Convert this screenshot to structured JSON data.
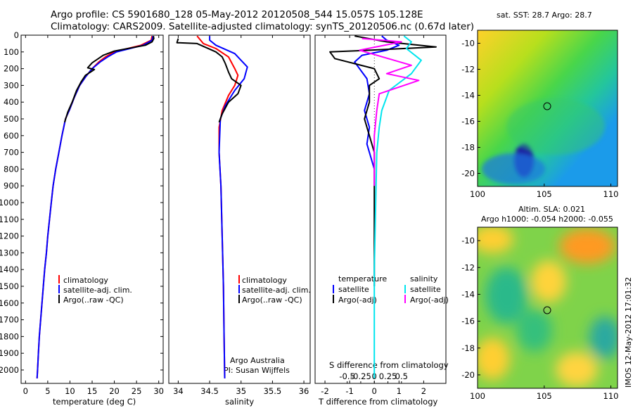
{
  "header": {
    "line1": "Argo profile: CS 5901680_128 05-May-2012 20120508_544 15.057S 105.128E",
    "line2": "Climatology: CARS2009. Satellite-adjusted climatology: synTS_20120506.nc (0.67d later)"
  },
  "colors": {
    "climatology": "#ff0000",
    "satellite": "#0000ff",
    "argo": "#000000",
    "salinity_satellite": "#00e5ee",
    "salinity_argo": "#ff00ff"
  },
  "chart_data": [
    {
      "id": "temperature",
      "type": "line",
      "xlabel": "temperature (deg C)",
      "ylabel": "",
      "xlim": [
        -1,
        31
      ],
      "ylim": [
        2080,
        0
      ],
      "xticks": [
        0,
        5,
        10,
        15,
        20,
        25,
        30
      ],
      "yticks": [
        0,
        100,
        200,
        300,
        400,
        500,
        600,
        700,
        800,
        900,
        1000,
        1100,
        1200,
        1300,
        1400,
        1500,
        1600,
        1700,
        1800,
        1900,
        2000
      ],
      "legend": [
        "climatology",
        "satellite-adj. clim.",
        "Argo(..raw -QC)"
      ],
      "series": [
        {
          "name": "climatology",
          "color": "#ff0000",
          "points": [
            [
              28.5,
              5
            ],
            [
              28.3,
              30
            ],
            [
              26,
              60
            ],
            [
              23,
              80
            ],
            [
              20,
              100
            ],
            [
              18,
              130
            ],
            [
              16.5,
              160
            ],
            [
              15,
              200
            ],
            [
              13.5,
              250
            ],
            [
              12.2,
              300
            ],
            [
              11,
              370
            ],
            [
              10,
              440
            ],
            [
              9,
              500
            ],
            [
              8.2,
              600
            ],
            [
              7.5,
              700
            ],
            [
              6.8,
              800
            ],
            [
              6.2,
              900
            ],
            [
              5.8,
              1000
            ],
            [
              5.4,
              1100
            ],
            [
              5,
              1200
            ],
            [
              4.7,
              1300
            ],
            [
              4.3,
              1400
            ],
            [
              4,
              1500
            ],
            [
              3.7,
              1600
            ],
            [
              3.4,
              1700
            ],
            [
              3.1,
              1800
            ],
            [
              2.9,
              1900
            ],
            [
              2.7,
              2000
            ],
            [
              2.6,
              2050
            ]
          ]
        },
        {
          "name": "satellite-adj. clim.",
          "color": "#0000ff",
          "points": [
            [
              28.7,
              5
            ],
            [
              28.5,
              30
            ],
            [
              26.5,
              60
            ],
            [
              23.5,
              80
            ],
            [
              20.5,
              100
            ],
            [
              18.5,
              130
            ],
            [
              16.8,
              160
            ],
            [
              15,
              200
            ],
            [
              13.5,
              250
            ],
            [
              12.2,
              300
            ],
            [
              11,
              370
            ],
            [
              10,
              440
            ],
            [
              9,
              500
            ],
            [
              8.2,
              600
            ],
            [
              7.5,
              700
            ],
            [
              6.8,
              800
            ],
            [
              6.2,
              900
            ],
            [
              5.8,
              1000
            ],
            [
              5.4,
              1100
            ],
            [
              5,
              1200
            ],
            [
              4.7,
              1300
            ],
            [
              4.3,
              1400
            ],
            [
              4,
              1500
            ],
            [
              3.7,
              1600
            ],
            [
              3.4,
              1700
            ],
            [
              3.1,
              1800
            ],
            [
              2.9,
              1900
            ],
            [
              2.7,
              2000
            ],
            [
              2.6,
              2050
            ]
          ]
        },
        {
          "name": "Argo(..raw -QC)",
          "color": "#000000",
          "points": [
            [
              28.8,
              5
            ],
            [
              28.9,
              20
            ],
            [
              28.5,
              40
            ],
            [
              27,
              60
            ],
            [
              24,
              75
            ],
            [
              20,
              95
            ],
            [
              17.5,
              120
            ],
            [
              15,
              165
            ],
            [
              14.5,
              180
            ],
            [
              14,
              195
            ],
            [
              15.5,
              205
            ],
            [
              13.5,
              240
            ],
            [
              12.5,
              280
            ],
            [
              11.5,
              330
            ],
            [
              10.5,
              400
            ],
            [
              9.5,
              460
            ],
            [
              8.8,
              520
            ]
          ]
        }
      ]
    },
    {
      "id": "salinity",
      "type": "line",
      "xlabel": "salinity",
      "ylabel": "",
      "xlim": [
        33.85,
        36.1
      ],
      "ylim": [
        2080,
        0
      ],
      "xticks": [
        34,
        34.5,
        35,
        35.5,
        36
      ],
      "xticklabels": [
        "34",
        "34.5",
        "35",
        "35.5",
        "36"
      ],
      "legend": [
        "climatology",
        "satellite-adj. clim.",
        "Argo(..raw -QC)"
      ],
      "series": [
        {
          "name": "climatology",
          "color": "#ff0000",
          "points": [
            [
              34.3,
              5
            ],
            [
              34.4,
              50
            ],
            [
              34.6,
              80
            ],
            [
              34.8,
              130
            ],
            [
              34.9,
              200
            ],
            [
              34.95,
              240
            ],
            [
              34.9,
              300
            ],
            [
              34.8,
              360
            ],
            [
              34.7,
              450
            ],
            [
              34.65,
              550
            ],
            [
              34.65,
              700
            ],
            [
              34.68,
              900
            ],
            [
              34.7,
              1200
            ],
            [
              34.72,
              1500
            ],
            [
              34.73,
              1800
            ],
            [
              34.74,
              2050
            ]
          ]
        },
        {
          "name": "satellite-adj. clim.",
          "color": "#0000ff",
          "points": [
            [
              34.5,
              5
            ],
            [
              34.5,
              30
            ],
            [
              34.6,
              60
            ],
            [
              34.9,
              110
            ],
            [
              35.0,
              150
            ],
            [
              35.1,
              190
            ],
            [
              35.05,
              260
            ],
            [
              34.9,
              330
            ],
            [
              34.75,
              420
            ],
            [
              34.67,
              500
            ],
            [
              34.65,
              700
            ],
            [
              34.68,
              900
            ],
            [
              34.7,
              1200
            ],
            [
              34.72,
              1500
            ],
            [
              34.73,
              1800
            ],
            [
              34.74,
              2050
            ]
          ]
        },
        {
          "name": "Argo(..raw -QC)",
          "color": "#000000",
          "points": [
            [
              34.0,
              20
            ],
            [
              33.98,
              45
            ],
            [
              34.3,
              50
            ],
            [
              34.6,
              100
            ],
            [
              34.7,
              130
            ],
            [
              34.75,
              170
            ],
            [
              34.8,
              220
            ],
            [
              34.85,
              260
            ],
            [
              35.0,
              300
            ],
            [
              34.95,
              350
            ],
            [
              34.8,
              400
            ],
            [
              34.7,
              470
            ],
            [
              34.65,
              520
            ]
          ]
        }
      ],
      "annotation": [
        "Argo Australia",
        "PI: Susan Wijffels"
      ]
    },
    {
      "id": "difference",
      "type": "line",
      "xlabel": "T difference from climatology",
      "top_xlabel": "S difference from climatology",
      "xlim": [
        -2.4,
        2.9
      ],
      "ylim": [
        2080,
        0
      ],
      "xticks": [
        -2,
        -1,
        0,
        1,
        2
      ],
      "top_xticks": [
        -0.5,
        -0.25,
        0,
        0.25,
        0.5
      ],
      "legend_titles": [
        "temperature",
        "salinity"
      ],
      "legend": [
        "satellite",
        "Argo(-adj)",
        "satellite",
        "Argo(-adj)"
      ],
      "series": [
        {
          "name": "temperature satellite",
          "color": "#0000ff",
          "points": [
            [
              0.3,
              5
            ],
            [
              0.5,
              30
            ],
            [
              1.0,
              60
            ],
            [
              0.5,
              90
            ],
            [
              -0.5,
              120
            ],
            [
              -0.8,
              160
            ],
            [
              -0.6,
              200
            ],
            [
              -0.3,
              260
            ],
            [
              -0.2,
              350
            ],
            [
              -0.4,
              450
            ],
            [
              -0.2,
              550
            ],
            [
              -0.3,
              650
            ],
            [
              0,
              800
            ]
          ]
        },
        {
          "name": "temperature Argo(-adj)",
          "color": "#000000",
          "points": [
            [
              -0.8,
              5
            ],
            [
              0.5,
              40
            ],
            [
              2.5,
              70
            ],
            [
              -0.2,
              90
            ],
            [
              -1.8,
              100
            ],
            [
              -1.6,
              140
            ],
            [
              0,
              200
            ],
            [
              0.2,
              260
            ],
            [
              -0.2,
              300
            ],
            [
              -0.2,
              400
            ],
            [
              -0.4,
              500
            ],
            [
              -0.2,
              600
            ],
            [
              0,
              700
            ],
            [
              0,
              1300
            ],
            [
              0,
              1500
            ]
          ]
        },
        {
          "name": "salinity satellite",
          "color": "#00e5ee",
          "points": [
            [
              1.2,
              5
            ],
            [
              1.5,
              40
            ],
            [
              1.3,
              80
            ],
            [
              1.9,
              150
            ],
            [
              1.5,
              230
            ],
            [
              0.6,
              330
            ],
            [
              0.3,
              450
            ],
            [
              0.2,
              550
            ],
            [
              0.1,
              700
            ],
            [
              0,
              1400
            ],
            [
              0,
              2050
            ]
          ]
        },
        {
          "name": "salinity Argo(-adj)",
          "color": "#ff00ff",
          "points": [
            [
              -0.5,
              20
            ],
            [
              1.1,
              40
            ],
            [
              -0.6,
              90
            ],
            [
              1.5,
              180
            ],
            [
              0.5,
              230
            ],
            [
              1.8,
              270
            ],
            [
              0.2,
              350
            ],
            [
              0.1,
              450
            ],
            [
              0,
              600
            ],
            [
              0,
              900
            ]
          ]
        }
      ]
    },
    {
      "id": "sst_map",
      "type": "heatmap",
      "title": "sat. SST: 28.7 Argo: 28.7",
      "xlim": [
        100,
        110.5
      ],
      "ylim": [
        -21,
        -9
      ],
      "xticks": [
        100,
        105,
        110
      ],
      "yticks": [
        -10,
        -12,
        -14,
        -16,
        -18,
        -20
      ],
      "marker": [
        105.128,
        -15.057
      ]
    },
    {
      "id": "sla_map",
      "type": "heatmap",
      "title": "Altim. SLA: 0.021",
      "subtitle": "Argo h1000: -0.054 h2000: -0.055",
      "xlim": [
        100,
        110.5
      ],
      "ylim": [
        -21,
        -9
      ],
      "xticks": [
        100,
        105,
        110
      ],
      "yticks": [
        -10,
        -12,
        -14,
        -16,
        -18,
        -20
      ],
      "marker": [
        105.128,
        -15.057
      ]
    }
  ],
  "footer_vertical": "IMOS 12-May-2012 17:01:32"
}
